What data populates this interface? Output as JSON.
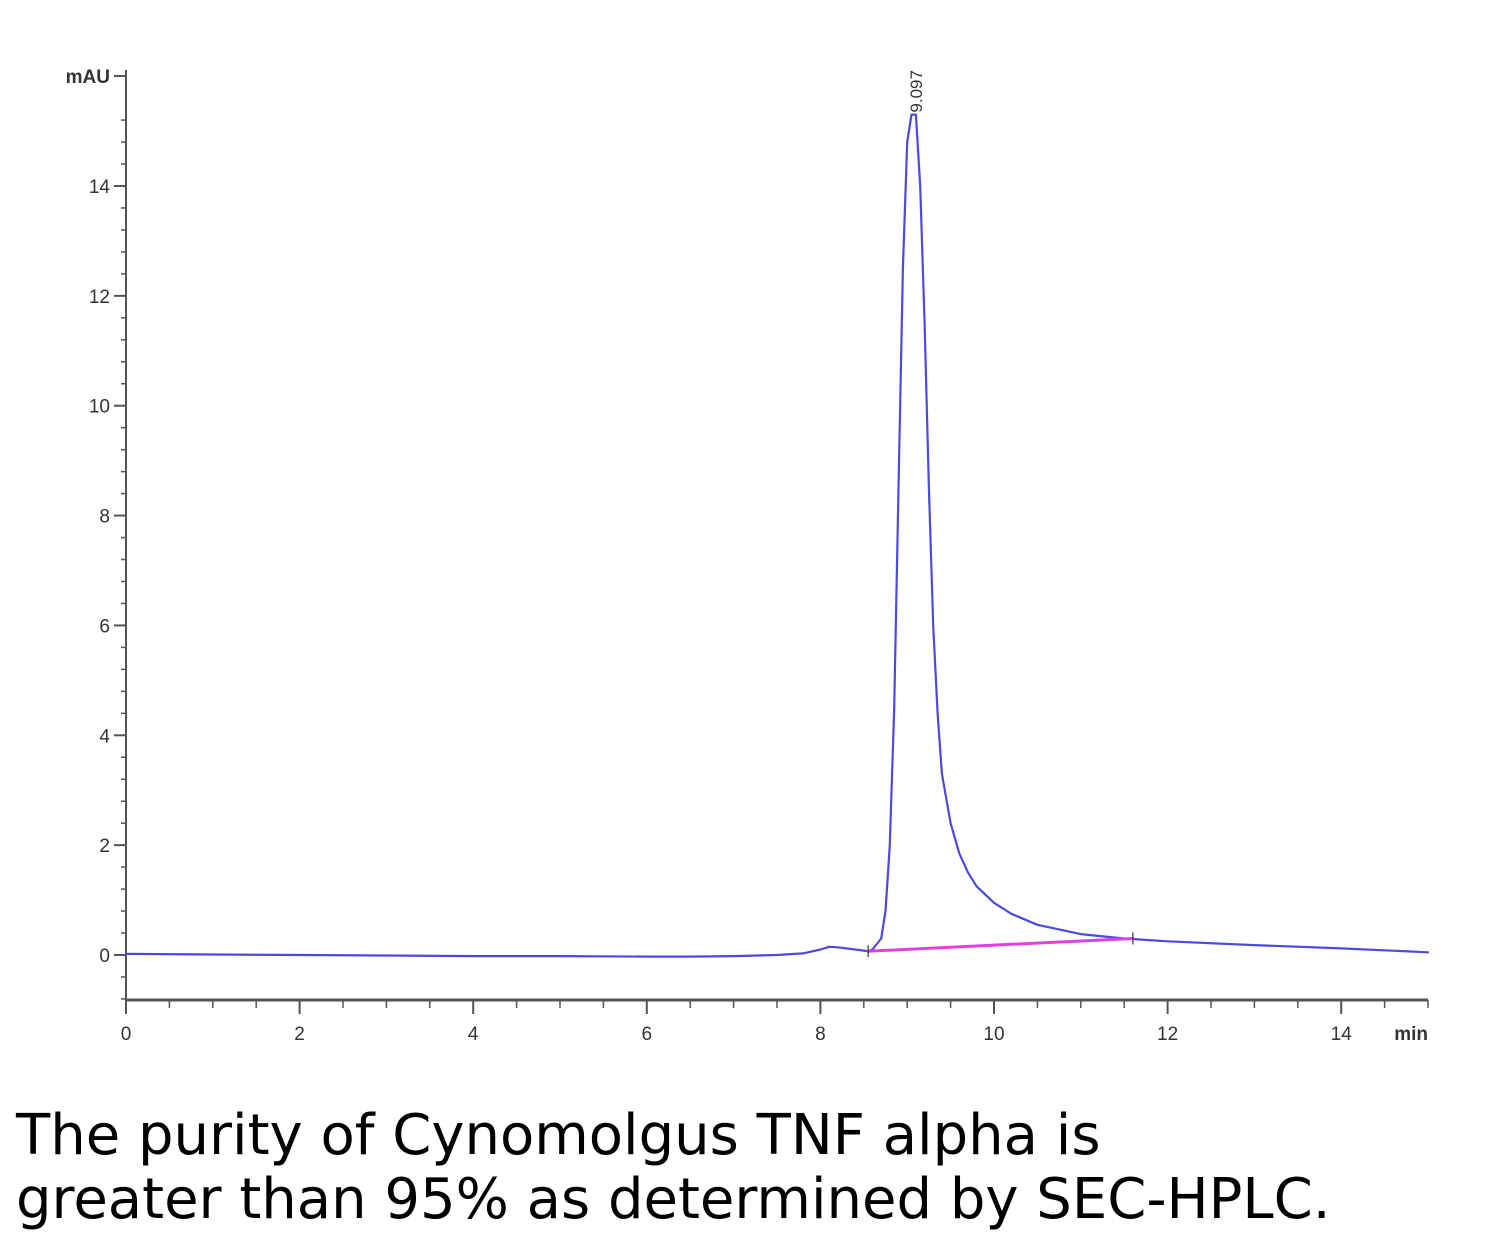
{
  "chart_data": {
    "type": "line",
    "ylabel": "mAU",
    "xlabel": "min",
    "xlim": [
      0,
      15
    ],
    "ylim": [
      -0.8,
      16
    ],
    "x_ticks": [
      0,
      2,
      4,
      6,
      8,
      10,
      12,
      14
    ],
    "y_ticks": [
      0,
      2,
      4,
      6,
      8,
      10,
      12,
      14
    ],
    "grid": false,
    "peak_annotations": [
      {
        "x": 9.1,
        "y": 15.3,
        "label": "9.097"
      }
    ],
    "series": [
      {
        "color": "#4a4adf",
        "x": [
          0,
          1,
          2,
          3,
          4,
          5,
          6,
          6.5,
          7,
          7.5,
          7.8,
          8.0,
          8.1,
          8.2,
          8.3,
          8.4,
          8.5,
          8.55,
          8.6,
          8.7,
          8.75,
          8.8,
          8.85,
          8.9,
          8.95,
          9.0,
          9.05,
          9.1,
          9.15,
          9.2,
          9.25,
          9.3,
          9.35,
          9.4,
          9.5,
          9.6,
          9.7,
          9.8,
          10.0,
          10.2,
          10.5,
          11.0,
          11.5,
          12.0,
          13.0,
          14.0,
          15.0
        ],
        "y": [
          0.02,
          0.01,
          0.0,
          -0.01,
          -0.02,
          -0.02,
          -0.03,
          -0.03,
          -0.02,
          0.0,
          0.03,
          0.1,
          0.15,
          0.14,
          0.12,
          0.1,
          0.08,
          0.07,
          0.1,
          0.3,
          0.8,
          2.0,
          4.5,
          8.5,
          12.5,
          14.8,
          15.3,
          15.3,
          14.0,
          11.5,
          8.5,
          6.0,
          4.4,
          3.3,
          2.4,
          1.85,
          1.5,
          1.25,
          0.95,
          0.75,
          0.55,
          0.38,
          0.3,
          0.25,
          0.18,
          0.12,
          0.05
        ]
      },
      {
        "color": "#e040e0",
        "x": [
          8.55,
          11.6
        ],
        "y": [
          0.07,
          0.3
        ]
      }
    ]
  },
  "caption": {
    "line1": "The purity of Cynomolgus TNF alpha is",
    "line2": "greater than 95% as determined by SEC-HPLC."
  }
}
